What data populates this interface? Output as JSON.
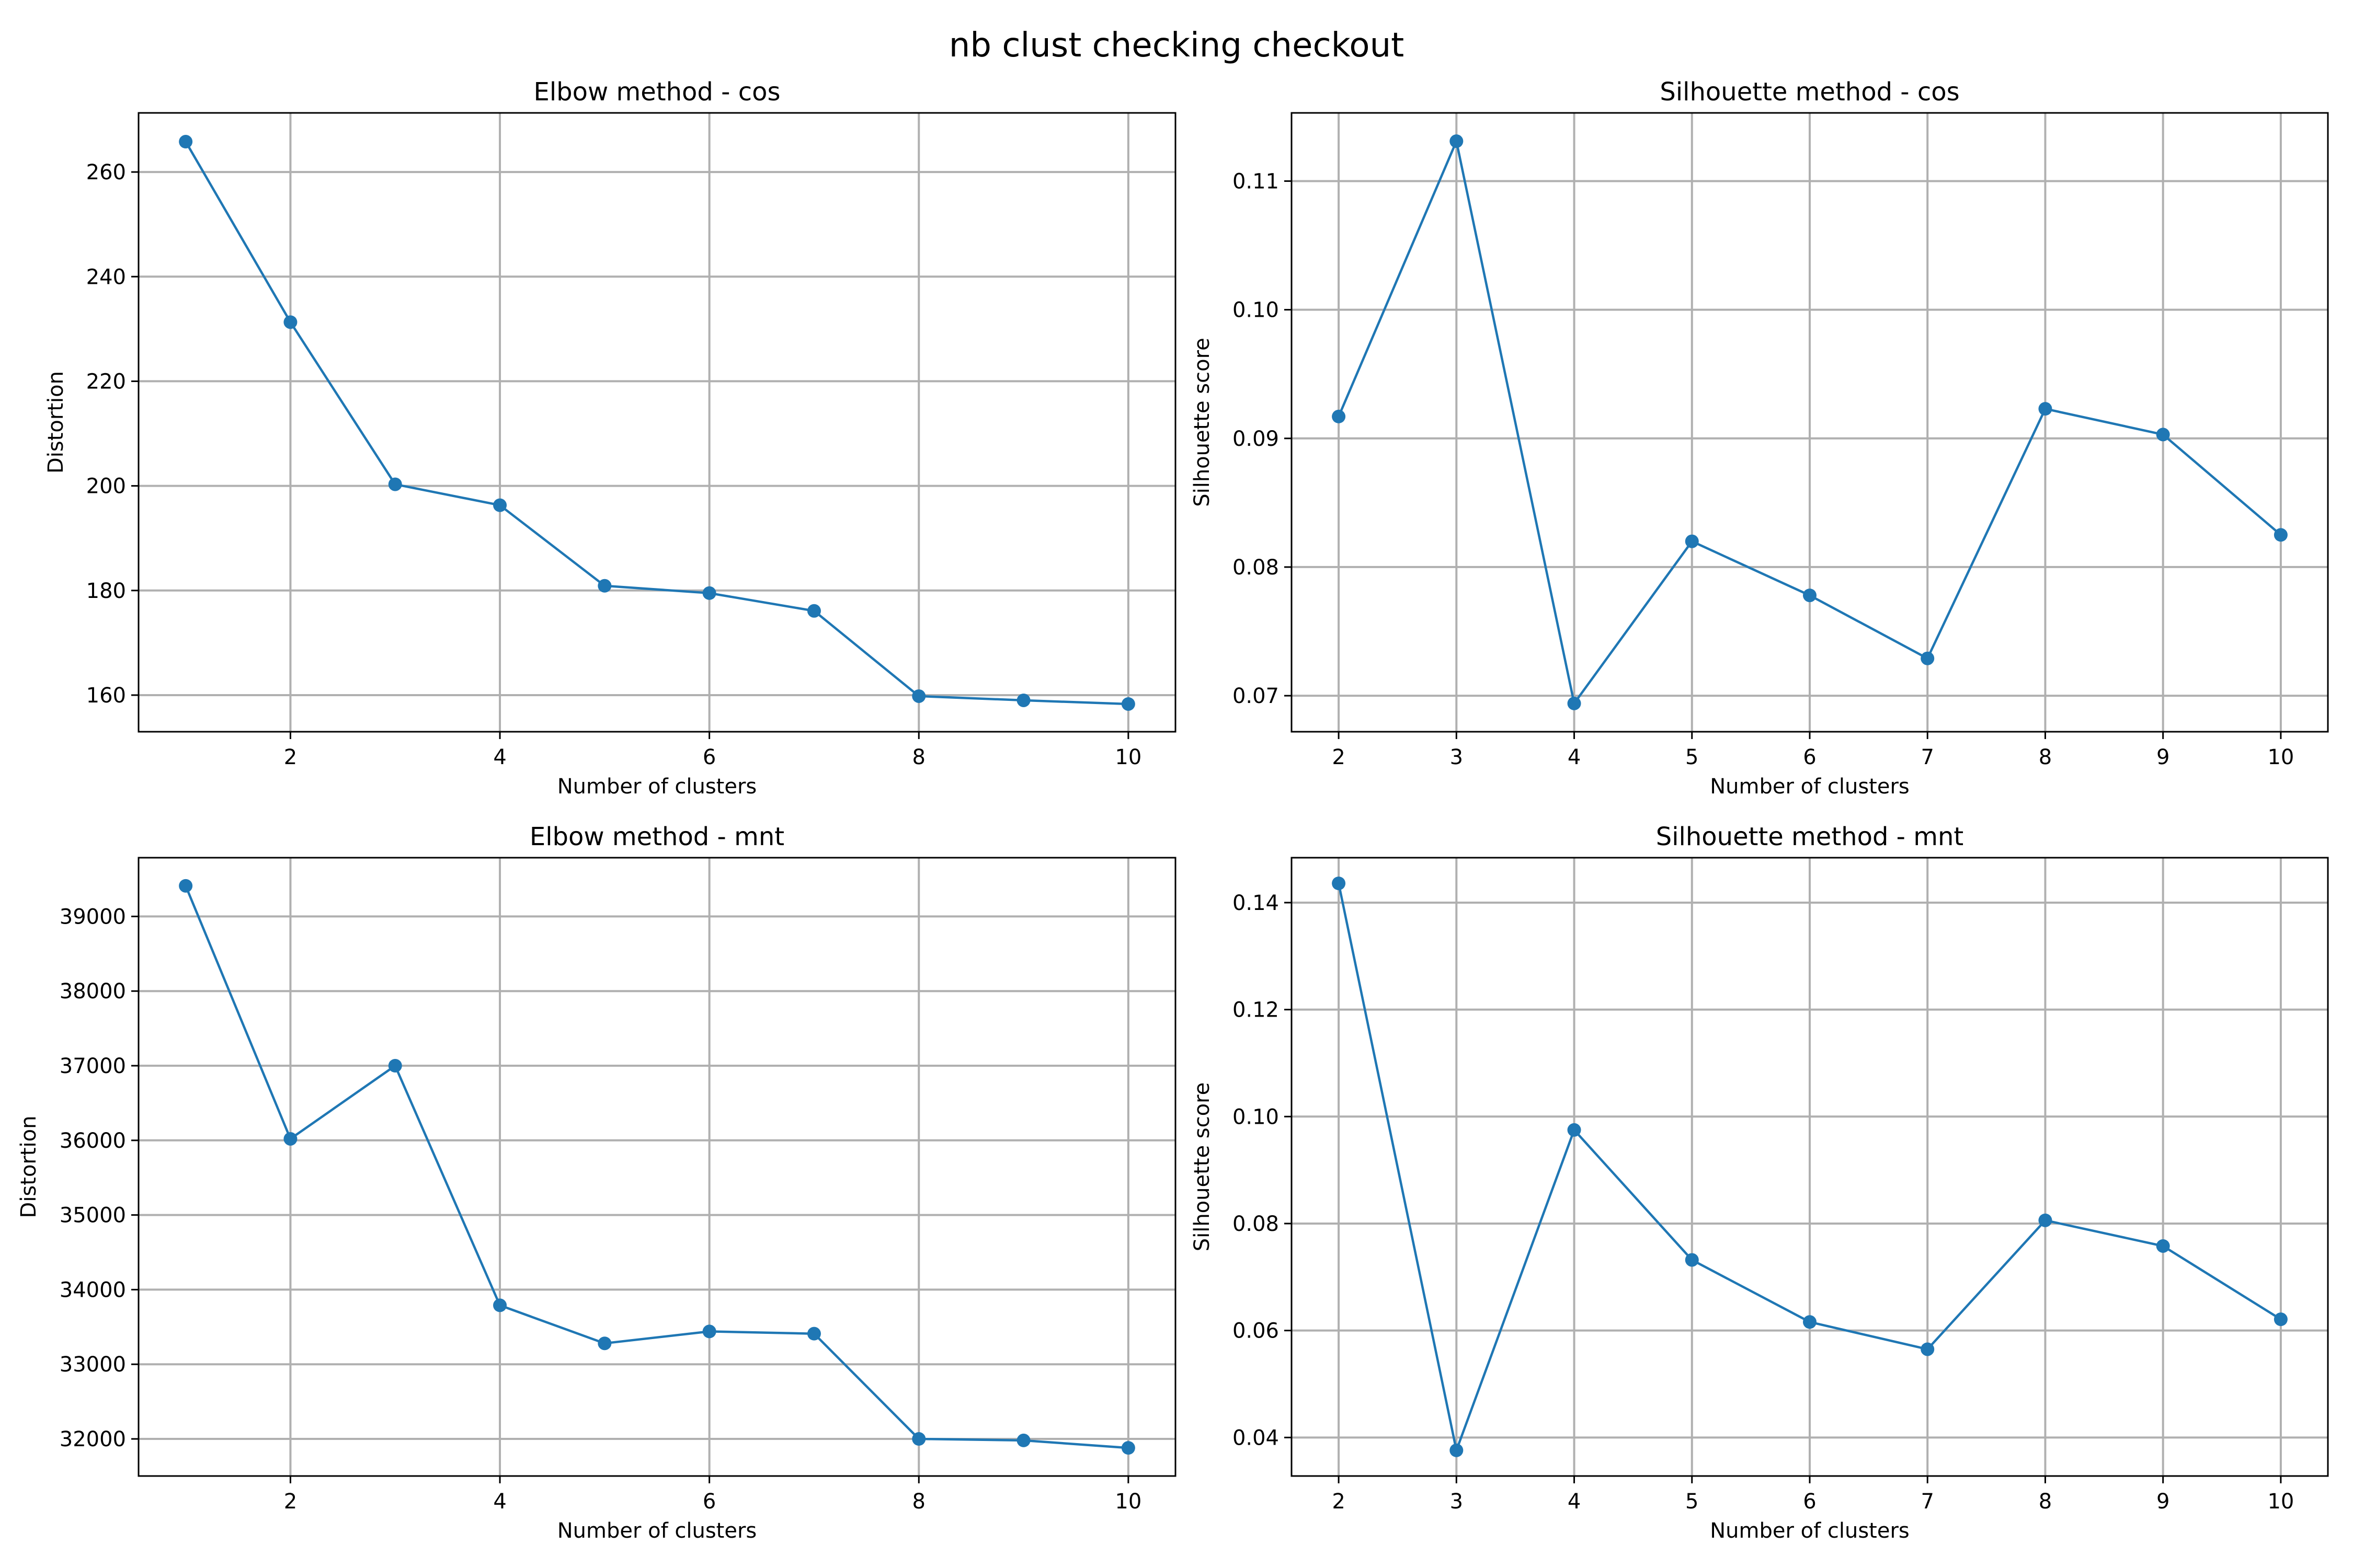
{
  "figure_title": "nb clust checking checkout",
  "colors": {
    "series": "#1f77b4"
  },
  "chart_data": [
    {
      "type": "line",
      "title": "Elbow method - cos",
      "xlabel": "Number of clusters",
      "ylabel": "Distortion",
      "grid": true,
      "marker": "circle",
      "x": [
        1,
        2,
        3,
        4,
        5,
        6,
        7,
        8,
        9,
        10
      ],
      "series": [
        {
          "values": [
            265.8,
            231.3,
            200.3,
            196.3,
            180.9,
            179.5,
            176.1,
            159.8,
            159.0,
            158.3
          ]
        }
      ],
      "xlim": [
        0.55,
        10.45
      ],
      "ylim": [
        153.0,
        271.3
      ],
      "xticks": [
        2,
        4,
        6,
        8,
        10
      ],
      "xtick_labels": [
        "2",
        "4",
        "6",
        "8",
        "10"
      ],
      "yticks": [
        160,
        180,
        200,
        220,
        240,
        260
      ],
      "ytick_labels": [
        "160",
        "180",
        "200",
        "220",
        "240",
        "260"
      ]
    },
    {
      "type": "line",
      "title": "Silhouette method - cos",
      "xlabel": "Number of clusters",
      "ylabel": "Silhouette score",
      "grid": true,
      "marker": "circle",
      "x": [
        2,
        3,
        4,
        5,
        6,
        7,
        8,
        9,
        10
      ],
      "series": [
        {
          "values": [
            0.0917,
            0.1131,
            0.0694,
            0.082,
            0.0778,
            0.0729,
            0.0923,
            0.0903,
            0.0825
          ]
        }
      ],
      "xlim": [
        1.6,
        10.4
      ],
      "ylim": [
        0.0672,
        0.1153
      ],
      "xticks": [
        2,
        3,
        4,
        5,
        6,
        7,
        8,
        9,
        10
      ],
      "xtick_labels": [
        "2",
        "3",
        "4",
        "5",
        "6",
        "7",
        "8",
        "9",
        "10"
      ],
      "yticks": [
        0.07,
        0.08,
        0.09,
        0.1,
        0.11
      ],
      "ytick_labels": [
        "0.07",
        "0.08",
        "0.09",
        "0.10",
        "0.11"
      ]
    },
    {
      "type": "line",
      "title": "Elbow method - mnt",
      "xlabel": "Number of clusters",
      "ylabel": "Distortion",
      "grid": true,
      "marker": "circle",
      "x": [
        1,
        2,
        3,
        4,
        5,
        6,
        7,
        8,
        9,
        10
      ],
      "series": [
        {
          "values": [
            39410,
            36020,
            37000,
            33790,
            33280,
            33440,
            33410,
            32000,
            31980,
            31880
          ]
        }
      ],
      "xlim": [
        0.55,
        10.45
      ],
      "ylim": [
        31503,
        39787
      ],
      "xticks": [
        2,
        4,
        6,
        8,
        10
      ],
      "xtick_labels": [
        "2",
        "4",
        "6",
        "8",
        "10"
      ],
      "yticks": [
        32000,
        33000,
        34000,
        35000,
        36000,
        37000,
        38000,
        39000
      ],
      "ytick_labels": [
        "32000",
        "33000",
        "34000",
        "35000",
        "36000",
        "37000",
        "38000",
        "39000"
      ]
    },
    {
      "type": "line",
      "title": "Silhouette method - mnt",
      "xlabel": "Number of clusters",
      "ylabel": "Silhouette score",
      "grid": true,
      "marker": "circle",
      "x": [
        2,
        3,
        4,
        5,
        6,
        7,
        8,
        9,
        10
      ],
      "series": [
        {
          "values": [
            0.1436,
            0.0376,
            0.0975,
            0.0732,
            0.0616,
            0.0565,
            0.0806,
            0.0758,
            0.0621
          ]
        }
      ],
      "xlim": [
        1.6,
        10.4
      ],
      "ylim": [
        0.0328,
        0.1484
      ],
      "xticks": [
        2,
        3,
        4,
        5,
        6,
        7,
        8,
        9,
        10
      ],
      "xtick_labels": [
        "2",
        "3",
        "4",
        "5",
        "6",
        "7",
        "8",
        "9",
        "10"
      ],
      "yticks": [
        0.04,
        0.06,
        0.08,
        0.1,
        0.12,
        0.14
      ],
      "ytick_labels": [
        "0.04",
        "0.06",
        "0.08",
        "0.10",
        "0.12",
        "0.14"
      ]
    }
  ]
}
